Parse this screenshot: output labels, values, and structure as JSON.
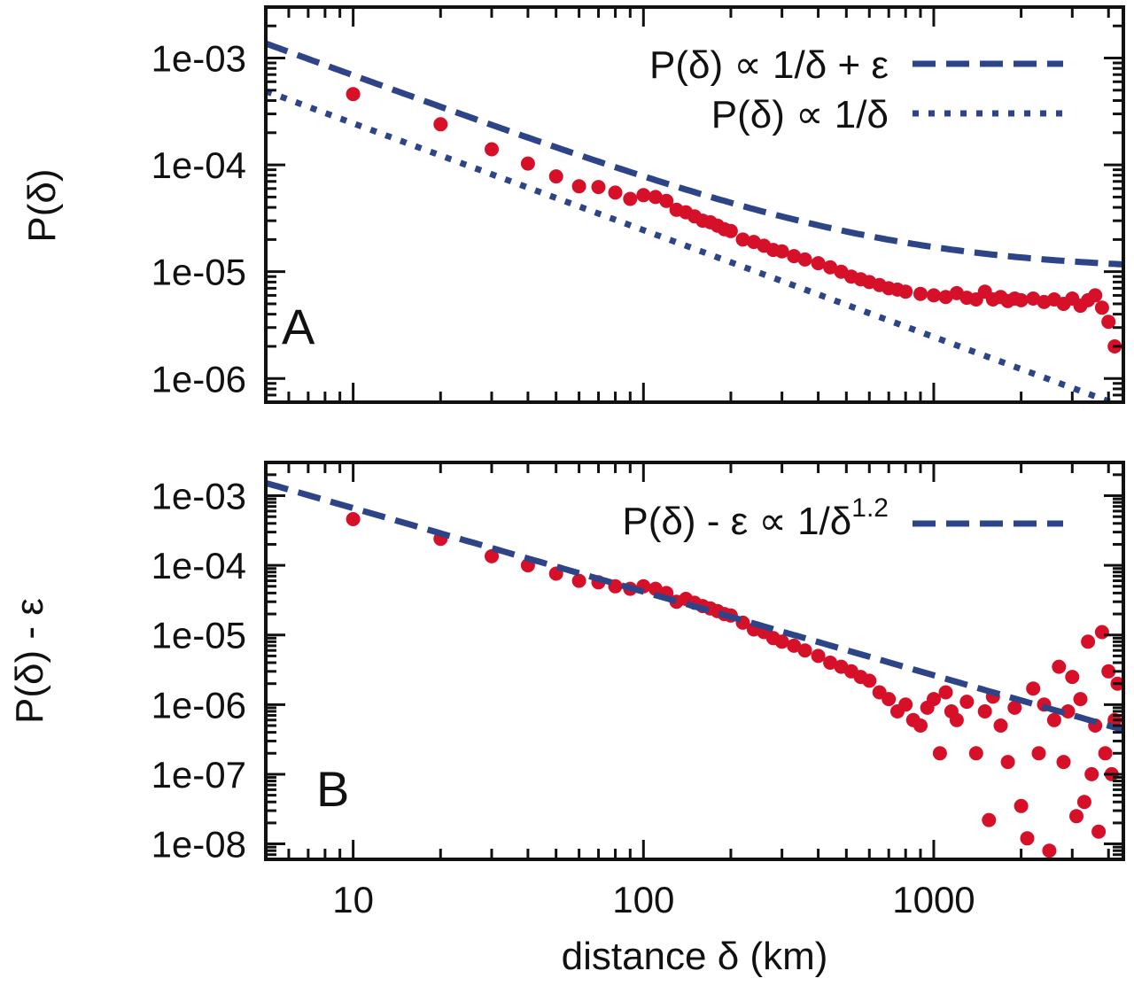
{
  "chart_data": [
    {
      "type": "scatter",
      "panel_label": "A",
      "xlabel": "",
      "ylabel": "P(δ)",
      "xscale": "log",
      "yscale": "log",
      "xlim": [
        5,
        4500
      ],
      "ylim": [
        6e-07,
        0.003
      ],
      "x_ticks": [
        10,
        100,
        1000
      ],
      "x_tick_labels": [
        "10",
        "100",
        "1000"
      ],
      "y_ticks": [
        0.001,
        0.0001,
        1e-05,
        1e-06
      ],
      "y_tick_labels": [
        "1e-03",
        "1e-04",
        "1e-05",
        "1e-06"
      ],
      "grid": false,
      "legend_position": "top-right",
      "series": [
        {
          "name": "P(δ)",
          "kind": "points",
          "color": "#d7102a",
          "x": [
            10,
            20,
            30,
            40,
            50,
            60,
            70,
            80,
            90,
            100,
            110,
            120,
            130,
            140,
            150,
            160,
            170,
            180,
            190,
            200,
            220,
            240,
            260,
            280,
            300,
            330,
            360,
            400,
            440,
            480,
            520,
            560,
            600,
            650,
            700,
            750,
            800,
            900,
            1000,
            1100,
            1200,
            1300,
            1400,
            1500,
            1600,
            1700,
            1800,
            1900,
            2000,
            2200,
            2400,
            2600,
            2800,
            3000,
            3200,
            3400,
            3600,
            3800,
            4000,
            4200
          ],
          "y": [
            0.00046,
            0.00024,
            0.00014,
            0.000103,
            7.8e-05,
            6.3e-05,
            6.2e-05,
            5.5e-05,
            4.8e-05,
            5.2e-05,
            5e-05,
            4.6e-05,
            3.8e-05,
            3.6e-05,
            3.3e-05,
            3e-05,
            2.9e-05,
            2.7e-05,
            2.5e-05,
            2.4e-05,
            2e-05,
            1.9e-05,
            1.75e-05,
            1.6e-05,
            1.55e-05,
            1.4e-05,
            1.3e-05,
            1.2e-05,
            1.1e-05,
            1e-05,
            9e-06,
            8.5e-06,
            8e-06,
            7.5e-06,
            7e-06,
            6.8e-06,
            6.5e-06,
            6.2e-06,
            6e-06,
            5.8e-06,
            6.3e-06,
            5.7e-06,
            5.5e-06,
            6.5e-06,
            5.5e-06,
            5.8e-06,
            5.3e-06,
            5.6e-06,
            5.4e-06,
            5.6e-06,
            5.2e-06,
            5.5e-06,
            5e-06,
            5.6e-06,
            4.8e-06,
            5.4e-06,
            6e-06,
            4.6e-06,
            3.4e-06,
            2e-06
          ]
        },
        {
          "name": "P(δ) ∝ 1/δ + ε",
          "kind": "dashed-line",
          "color": "#2d4488",
          "formula": "a/x + b",
          "a": 0.0068,
          "b": 1.02e-05
        },
        {
          "name": "P(δ) ∝ 1/δ",
          "kind": "dotted-line",
          "color": "#2d4488",
          "formula": "a/x",
          "a": 0.00245
        }
      ]
    },
    {
      "type": "scatter",
      "panel_label": "B",
      "xlabel": "distance δ (km)",
      "ylabel": "P(δ) - ε",
      "xscale": "log",
      "yscale": "log",
      "xlim": [
        5,
        4500
      ],
      "ylim": [
        6e-09,
        0.003
      ],
      "x_ticks": [
        10,
        100,
        1000
      ],
      "x_tick_labels": [
        "10",
        "100",
        "1000"
      ],
      "y_ticks": [
        0.001,
        0.0001,
        1e-05,
        1e-06,
        1e-07,
        1e-08
      ],
      "y_tick_labels": [
        "1e-03",
        "1e-04",
        "1e-05",
        "1e-06",
        "1e-07",
        "1e-08"
      ],
      "grid": false,
      "legend_position": "top-right",
      "series": [
        {
          "name": "P(δ) - ε",
          "kind": "points",
          "color": "#d7102a",
          "x": [
            10,
            20,
            30,
            40,
            50,
            60,
            70,
            80,
            90,
            100,
            110,
            120,
            130,
            140,
            150,
            160,
            170,
            180,
            190,
            200,
            220,
            240,
            260,
            280,
            300,
            330,
            360,
            400,
            440,
            480,
            520,
            560,
            600,
            650,
            700,
            750,
            800,
            850,
            900,
            950,
            1000,
            1050,
            1100,
            1150,
            1200,
            1300,
            1400,
            1500,
            1550,
            1600,
            1700,
            1800,
            1900,
            2000,
            2100,
            2200,
            2300,
            2400,
            2500,
            2600,
            2700,
            2800,
            2900,
            3000,
            3100,
            3200,
            3300,
            3400,
            3500,
            3600,
            3700,
            3800,
            3900,
            4000,
            4100,
            4200,
            4300
          ],
          "y": [
            0.00046,
            0.00024,
            0.000135,
            0.0001,
            7.6e-05,
            6e-05,
            5.7e-05,
            5e-05,
            4.6e-05,
            5e-05,
            4.6e-05,
            4e-05,
            3e-05,
            3.3e-05,
            2.9e-05,
            2.6e-05,
            2.4e-05,
            2.2e-05,
            2e-05,
            1.9e-05,
            1.5e-05,
            1.2e-05,
            1.1e-05,
            9e-06,
            8e-06,
            7e-06,
            6e-06,
            5e-06,
            4e-06,
            3.5e-06,
            3e-06,
            2.5e-06,
            2.2e-06,
            1.5e-06,
            1.2e-06,
            8e-07,
            1e-06,
            6e-07,
            5e-07,
            9e-07,
            1.2e-06,
            2e-07,
            1.5e-06,
            8e-07,
            6e-07,
            1.1e-06,
            2e-07,
            8e-07,
            2.2e-08,
            1.3e-06,
            5e-07,
            1.5e-07,
            9e-07,
            3.5e-08,
            1.2e-08,
            1.7e-06,
            2e-07,
            1e-06,
            8e-09,
            6e-07,
            3.5e-06,
            1.5e-07,
            8e-07,
            2.5e-06,
            2.5e-08,
            1.2e-06,
            4e-08,
            8e-06,
            1e-07,
            5e-07,
            1.5e-08,
            1.1e-05,
            2e-07,
            3e-06,
            1e-07,
            6e-07,
            2e-06
          ]
        },
        {
          "name": "P(δ) - ε ∝ 1/δ^1.2",
          "kind": "dashed-line",
          "color": "#2d4488",
          "formula": "a/x^1.2",
          "a": 0.0105,
          "exponent": 1.2
        }
      ]
    }
  ]
}
